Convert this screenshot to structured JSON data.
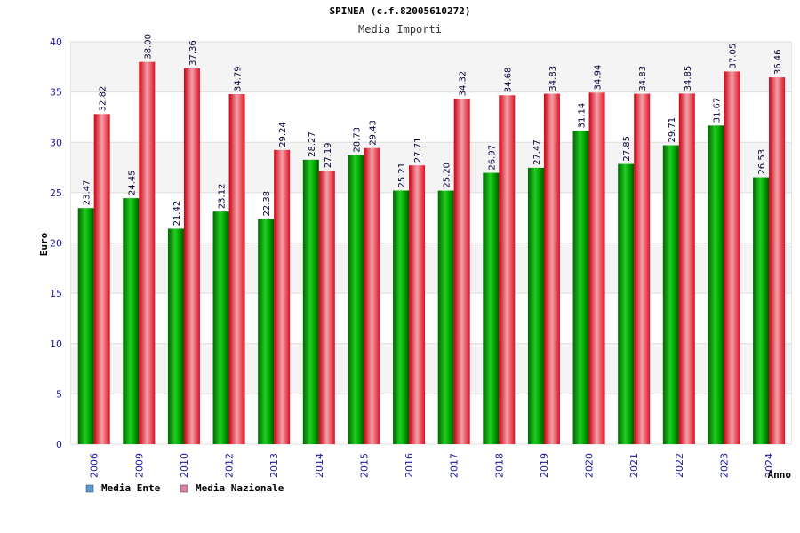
{
  "chart_data": {
    "type": "bar",
    "title": "SPINEA (c.f.82005610272)",
    "subtitle": "Media Importi",
    "xlabel": "Anno",
    "ylabel": "Euro",
    "ylim": [
      0,
      40
    ],
    "yticks": [
      0,
      5,
      10,
      15,
      20,
      25,
      30,
      35,
      40
    ],
    "grid": true,
    "legend_position": "bottom-left",
    "categories": [
      "2006",
      "2009",
      "2010",
      "2012",
      "2013",
      "2014",
      "2015",
      "2016",
      "2017",
      "2018",
      "2019",
      "2020",
      "2021",
      "2022",
      "2023",
      "2024"
    ],
    "series": [
      {
        "name": "Media Ente",
        "color": "#00aa00",
        "legend_color": "#5b9bd5",
        "values": [
          23.47,
          24.45,
          21.42,
          23.12,
          22.38,
          28.27,
          28.73,
          25.21,
          25.2,
          26.97,
          27.47,
          31.14,
          27.85,
          29.71,
          31.67,
          26.53
        ],
        "labels": [
          "23.47",
          "24.45",
          "21.42",
          "23.12",
          "22.38",
          "28.27",
          "28.73",
          "25.21",
          "25.20",
          "26.97",
          "27.47",
          "31.14",
          "27.85",
          "29.71",
          "31.67",
          "26.53"
        ]
      },
      {
        "name": "Media Nazionale",
        "color": "#ee1122",
        "legend_color": "#e07fa8",
        "values": [
          32.82,
          38.0,
          37.36,
          34.79,
          29.24,
          27.19,
          29.43,
          27.71,
          34.32,
          34.68,
          34.83,
          34.94,
          34.83,
          34.85,
          37.05,
          36.46
        ],
        "labels": [
          "32.82",
          "38.00",
          "37.36",
          "34.79",
          "29.24",
          "27.19",
          "29.43",
          "27.71",
          "34.32",
          "34.68",
          "34.83",
          "34.94",
          "34.83",
          "34.85",
          "37.05",
          "36.46"
        ]
      }
    ]
  }
}
